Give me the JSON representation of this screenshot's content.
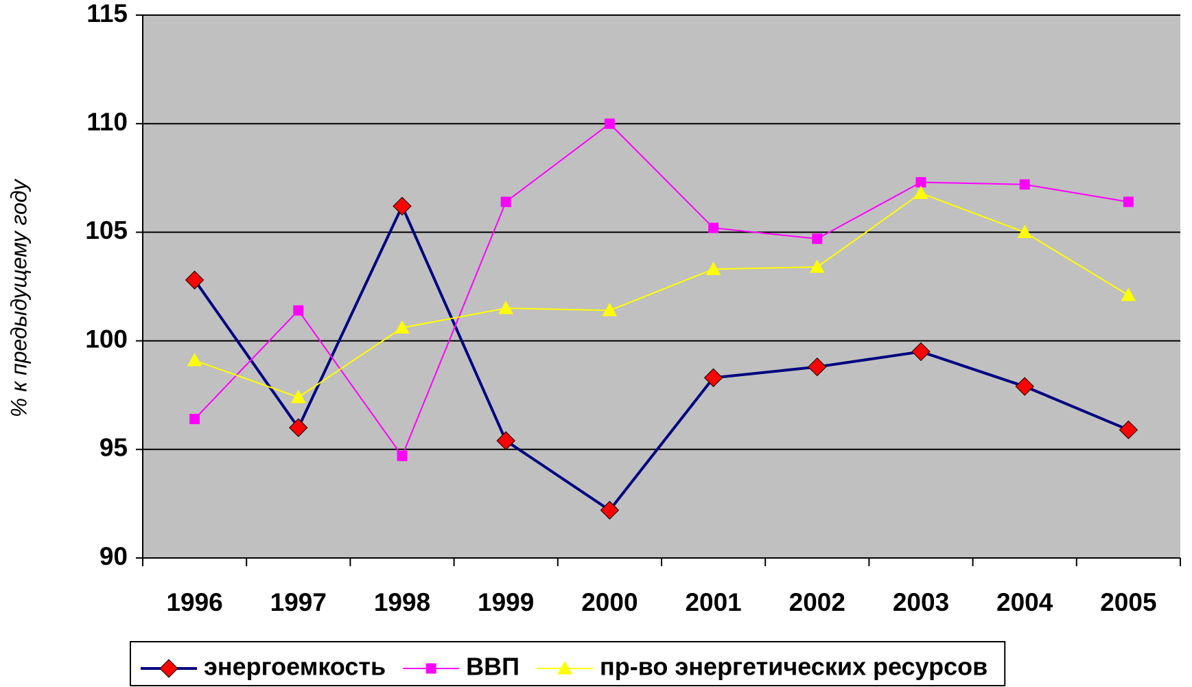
{
  "chart_data": {
    "type": "line",
    "y_label": "% к предыдущему году",
    "categories": [
      "1996",
      "1997",
      "1998",
      "1999",
      "2000",
      "2001",
      "2002",
      "2003",
      "2004",
      "2005"
    ],
    "series": [
      {
        "name": "энергоемкость",
        "color": "#000080",
        "marker": "diamond",
        "marker_color": "#ff0000",
        "values": [
          102.8,
          96.0,
          106.2,
          95.4,
          92.2,
          98.3,
          98.8,
          99.5,
          97.9,
          95.9
        ]
      },
      {
        "name": "ВВП",
        "color": "#ff00ff",
        "marker": "square",
        "marker_color": "#ff00ff",
        "values": [
          96.4,
          101.4,
          94.7,
          106.4,
          110.0,
          105.2,
          104.7,
          107.3,
          107.2,
          106.4
        ]
      },
      {
        "name": "пр-во энергетических ресурсов",
        "color": "#ffff00",
        "marker": "triangle",
        "marker_color": "#ffff00",
        "values": [
          99.1,
          97.4,
          100.6,
          101.5,
          101.4,
          103.3,
          103.4,
          106.8,
          105.0,
          102.1
        ]
      }
    ],
    "ylim": [
      90,
      115
    ],
    "yticks": [
      90,
      95,
      100,
      105,
      110,
      115
    ],
    "grid": true,
    "legend": "bottom"
  }
}
